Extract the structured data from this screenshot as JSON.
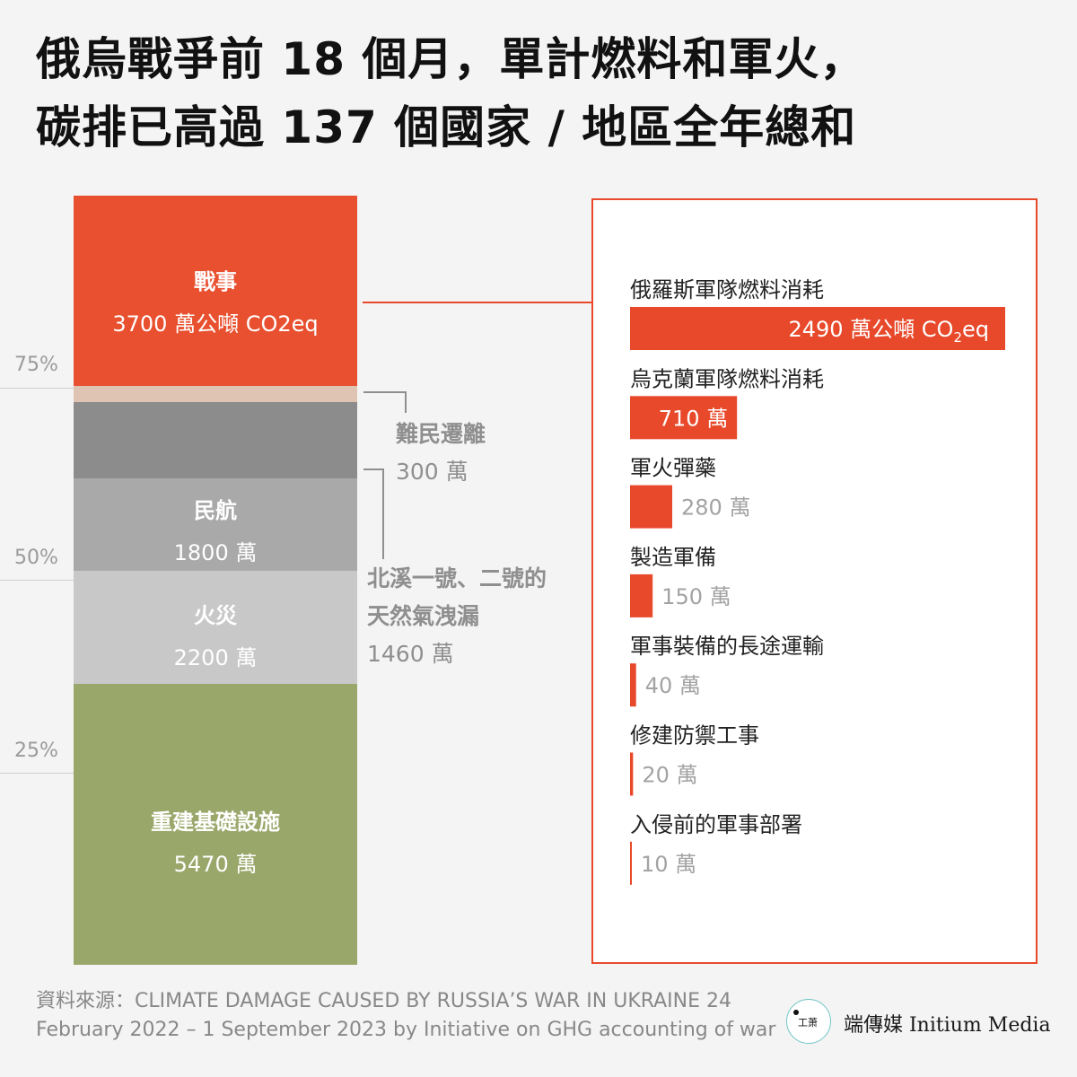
{
  "title": {
    "line1": "俄烏戰爭前 18 個月，單計燃料和軍火，",
    "line2": "碳排已高過 137 個國家 / 地區全年總和"
  },
  "axis": {
    "ticks": [
      "75%",
      "50%",
      "25%"
    ]
  },
  "stack": {
    "war": {
      "name": "戰事",
      "value": "3700 萬公噸 CO2eq"
    },
    "aviation": {
      "name": "民航",
      "value": "1800 萬"
    },
    "fire": {
      "name": "火災",
      "value": "2200 萬"
    },
    "rebuild": {
      "name": "重建基礎設施",
      "value": "5470 萬"
    }
  },
  "annotations": {
    "refugee": {
      "name": "難民遷離",
      "value": "300 萬"
    },
    "nordstream": {
      "name_line1": "北溪一號、二號的",
      "name_line2": "天然氣洩漏",
      "value": "1460 萬"
    }
  },
  "breakdown_labels": {
    "unit_first": "2490 萬公噸 CO",
    "unit_sub": "2",
    "unit_tail": "eq"
  },
  "colors": {
    "war": "#e8502f",
    "refugee": "#dfc4b4",
    "nordstream": "#8c8c8c",
    "aviation": "#a9a9a9",
    "fire": "#c8c8c8",
    "rebuild": "#9aa76a",
    "accent": "#e8492b"
  },
  "chart_data": [
    {
      "type": "bar",
      "stacked": true,
      "categories": [
        "重建基礎設施",
        "火災",
        "民航",
        "北溪一號、二號的天然氣洩漏",
        "難民遷離",
        "戰事"
      ],
      "values": [
        5470,
        2200,
        1800,
        1460,
        300,
        3700
      ],
      "unit": "萬公噸 CO2eq",
      "y_ticks": [
        "25%",
        "50%",
        "75%"
      ]
    },
    {
      "type": "bar",
      "orientation": "horizontal",
      "categories": [
        "俄羅斯軍隊燃料消耗",
        "烏克蘭軍隊燃料消耗",
        "軍火彈藥",
        "製造軍備",
        "軍事裝備的長途運輸",
        "修建防禦工事",
        "入侵前的軍事部署"
      ],
      "values": [
        2490,
        710,
        280,
        150,
        40,
        20,
        10
      ],
      "value_labels": [
        "2490 萬公噸 CO2eq",
        "710 萬",
        "280 萬",
        "150 萬",
        "40 萬",
        "20 萬",
        "10 萬"
      ],
      "unit": "萬公噸 CO2eq"
    }
  ],
  "footer": {
    "source_line1": "資料來源：CLIMATE DAMAGE CAUSED BY RUSSIA’S WAR IN UKRAINE 24",
    "source_line2": "February 2022 – 1 September 2023 by Initiative on GHG accounting of war",
    "brand": "端傳媒 Initium Media"
  }
}
